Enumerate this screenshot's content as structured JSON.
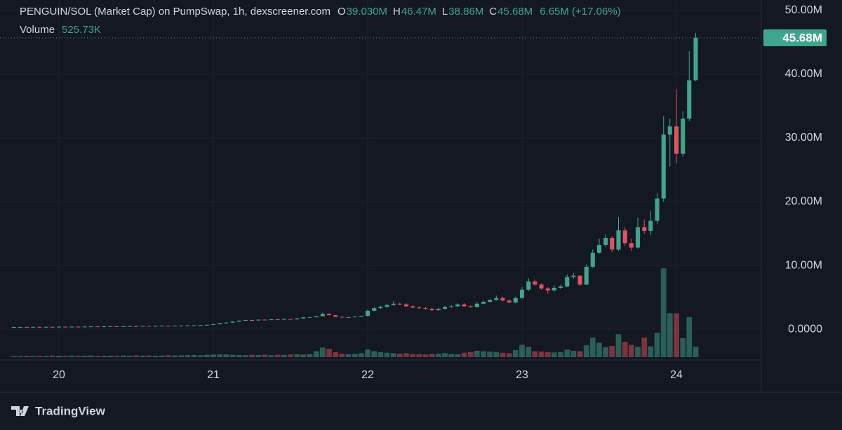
{
  "chart_data": {
    "type": "candlestick",
    "legend": {
      "title": "PENGUIN/SOL (Market Cap) on PumpSwap, 1h, dexscreener.com",
      "items": [
        {
          "key": "O",
          "value": "39.030M"
        },
        {
          "key": "H",
          "value": "46.47M"
        },
        {
          "key": "L",
          "value": "38.86M"
        },
        {
          "key": "C",
          "value": "45.68M"
        }
      ],
      "change": "6.65M (+17.06%)",
      "volume_name": "Volume",
      "volume": "525.73K"
    },
    "branding": "TradingView",
    "up_color": "#3fa58c",
    "down_color": "#e0525c",
    "background": "#141823",
    "grid": true,
    "xlim": [
      19.618,
      24.55
    ],
    "xticks": [
      20,
      21,
      22,
      23,
      24
    ],
    "ylim": [
      -4.7,
      51.6
    ],
    "yticks": [
      {
        "value": 0,
        "label": "0.0000"
      },
      {
        "value": 10,
        "label": "10.00M"
      },
      {
        "value": 20,
        "label": "20.00M"
      },
      {
        "value": 30,
        "label": "30.00M"
      },
      {
        "value": 40,
        "label": "40.00M"
      },
      {
        "value": 50,
        "label": "50.00M"
      }
    ],
    "volume_ylim": [
      0,
      17900
    ],
    "x": [
      19.708,
      19.75,
      19.792,
      19.833,
      19.875,
      19.917,
      19.958,
      20.0,
      20.042,
      20.083,
      20.125,
      20.167,
      20.208,
      20.25,
      20.292,
      20.333,
      20.375,
      20.417,
      20.458,
      20.5,
      20.542,
      20.583,
      20.625,
      20.667,
      20.708,
      20.75,
      20.792,
      20.833,
      20.875,
      20.917,
      20.958,
      21.0,
      21.042,
      21.083,
      21.125,
      21.167,
      21.208,
      21.25,
      21.292,
      21.333,
      21.375,
      21.417,
      21.458,
      21.5,
      21.542,
      21.583,
      21.625,
      21.667,
      21.708,
      21.75,
      21.792,
      21.833,
      21.875,
      21.917,
      21.958,
      22.0,
      22.042,
      22.083,
      22.125,
      22.167,
      22.208,
      22.25,
      22.292,
      22.333,
      22.375,
      22.417,
      22.458,
      22.5,
      22.542,
      22.583,
      22.625,
      22.667,
      22.708,
      22.75,
      22.792,
      22.833,
      22.875,
      22.917,
      22.958,
      23.0,
      23.042,
      23.083,
      23.125,
      23.167,
      23.208,
      23.25,
      23.292,
      23.333,
      23.375,
      23.417,
      23.458,
      23.5,
      23.542,
      23.583,
      23.625,
      23.667,
      23.708,
      23.75,
      23.792,
      23.833,
      23.875,
      23.917,
      23.958,
      24.0,
      24.042,
      24.083,
      24.125
    ],
    "open": [
      0.34,
      0.35,
      0.36,
      0.35,
      0.37,
      0.36,
      0.38,
      0.37,
      0.4,
      0.39,
      0.41,
      0.4,
      0.42,
      0.44,
      0.43,
      0.45,
      0.47,
      0.46,
      0.48,
      0.5,
      0.49,
      0.52,
      0.51,
      0.54,
      0.55,
      0.53,
      0.57,
      0.58,
      0.6,
      0.62,
      0.65,
      0.7,
      0.8,
      0.95,
      1.05,
      1.2,
      1.35,
      1.45,
      1.4,
      1.5,
      1.45,
      1.55,
      1.5,
      1.6,
      1.55,
      1.7,
      1.85,
      1.9,
      2.05,
      2.4,
      2.2,
      1.95,
      1.85,
      1.9,
      2.0,
      2.1,
      2.9,
      3.3,
      3.5,
      3.8,
      4.0,
      3.9,
      3.6,
      3.4,
      3.3,
      3.2,
      3.0,
      3.2,
      3.5,
      3.6,
      3.9,
      3.6,
      3.5,
      4.0,
      4.3,
      4.6,
      4.9,
      4.5,
      4.2,
      4.9,
      6.2,
      7.5,
      7.0,
      6.4,
      6.1,
      6.5,
      6.7,
      8.2,
      8.4,
      7.0,
      9.8,
      12.0,
      13.2,
      14.3,
      12.5,
      15.5,
      13.5,
      12.8,
      16.0,
      15.4,
      17.0,
      20.5,
      30.5,
      31.8,
      27.5,
      33.0,
      39.03
    ],
    "high": [
      0.39,
      0.4,
      0.4,
      0.41,
      0.41,
      0.42,
      0.42,
      0.44,
      0.44,
      0.45,
      0.45,
      0.46,
      0.48,
      0.48,
      0.49,
      0.51,
      0.51,
      0.52,
      0.54,
      0.54,
      0.56,
      0.56,
      0.58,
      0.59,
      0.59,
      0.61,
      0.62,
      0.64,
      0.66,
      0.69,
      0.74,
      0.84,
      0.99,
      1.09,
      1.24,
      1.39,
      1.49,
      1.49,
      1.54,
      1.54,
      1.59,
      1.59,
      1.64,
      1.64,
      1.74,
      1.89,
      1.94,
      2.09,
      2.6,
      2.5,
      2.24,
      1.99,
      1.94,
      2.04,
      2.14,
      3.1,
      3.5,
      3.7,
      4.0,
      4.4,
      4.2,
      4.1,
      3.8,
      3.6,
      3.5,
      3.4,
      3.4,
      3.7,
      3.8,
      4.1,
      4.1,
      3.8,
      4.2,
      4.5,
      4.8,
      5.3,
      5.1,
      4.7,
      5.1,
      6.6,
      8.0,
      7.8,
      7.2,
      6.6,
      6.9,
      7.0,
      8.6,
      8.8,
      8.5,
      10.2,
      12.5,
      14.2,
      14.9,
      14.6,
      17.6,
      16.0,
      14.2,
      17.5,
      17.2,
      18.6,
      21.4,
      33.4,
      33.0,
      37.6,
      34.2,
      43.6,
      46.47
    ],
    "low": [
      0.3,
      0.31,
      0.31,
      0.31,
      0.32,
      0.32,
      0.33,
      0.33,
      0.35,
      0.35,
      0.36,
      0.36,
      0.38,
      0.39,
      0.39,
      0.41,
      0.42,
      0.42,
      0.44,
      0.45,
      0.45,
      0.47,
      0.47,
      0.5,
      0.49,
      0.49,
      0.53,
      0.54,
      0.56,
      0.58,
      0.61,
      0.66,
      0.76,
      0.91,
      1.01,
      1.16,
      1.31,
      1.36,
      1.36,
      1.41,
      1.41,
      1.46,
      1.46,
      1.51,
      1.51,
      1.66,
      1.81,
      1.86,
      2.01,
      2.16,
      1.91,
      1.81,
      1.81,
      1.86,
      1.96,
      2.0,
      2.8,
      3.2,
      3.4,
      3.7,
      3.8,
      3.5,
      3.3,
      3.2,
      3.1,
      2.9,
      2.9,
      3.1,
      3.4,
      3.5,
      3.5,
      3.4,
      3.4,
      3.9,
      4.2,
      4.5,
      4.4,
      4.1,
      4.1,
      4.8,
      6.0,
      6.8,
      6.2,
      5.6,
      5.9,
      6.3,
      6.6,
      7.9,
      6.8,
      6.9,
      9.6,
      11.8,
      12.9,
      12.1,
      12.3,
      13.1,
      12.3,
      12.6,
      15.0,
      14.8,
      16.5,
      20.0,
      25.5,
      26.0,
      27.0,
      32.6,
      38.86
    ],
    "close": [
      0.35,
      0.36,
      0.35,
      0.37,
      0.36,
      0.38,
      0.37,
      0.4,
      0.39,
      0.41,
      0.4,
      0.42,
      0.44,
      0.43,
      0.45,
      0.47,
      0.46,
      0.48,
      0.5,
      0.49,
      0.52,
      0.51,
      0.54,
      0.55,
      0.53,
      0.57,
      0.58,
      0.6,
      0.62,
      0.65,
      0.7,
      0.8,
      0.95,
      1.05,
      1.2,
      1.35,
      1.45,
      1.4,
      1.5,
      1.45,
      1.55,
      1.5,
      1.6,
      1.55,
      1.7,
      1.85,
      1.9,
      2.05,
      2.4,
      2.2,
      1.95,
      1.85,
      1.9,
      2.0,
      2.1,
      2.9,
      3.3,
      3.5,
      3.8,
      4.0,
      3.9,
      3.6,
      3.4,
      3.3,
      3.2,
      3.0,
      3.2,
      3.5,
      3.6,
      3.9,
      3.6,
      3.5,
      4.0,
      4.3,
      4.6,
      4.9,
      4.5,
      4.2,
      4.9,
      6.2,
      7.5,
      7.0,
      6.4,
      6.1,
      6.5,
      6.7,
      8.2,
      8.4,
      7.0,
      9.8,
      12.0,
      13.2,
      14.3,
      12.5,
      15.5,
      13.5,
      12.8,
      16.0,
      15.4,
      17.0,
      20.5,
      30.5,
      31.8,
      27.5,
      33.0,
      39.03,
      45.68
    ],
    "volume": [
      60,
      50,
      70,
      55,
      65,
      60,
      80,
      70,
      60,
      75,
      65,
      70,
      80,
      60,
      70,
      75,
      65,
      80,
      70,
      90,
      75,
      85,
      70,
      80,
      95,
      85,
      90,
      100,
      110,
      95,
      120,
      130,
      150,
      140,
      120,
      110,
      100,
      120,
      110,
      130,
      100,
      120,
      110,
      140,
      150,
      130,
      160,
      300,
      480,
      420,
      250,
      180,
      150,
      170,
      200,
      380,
      300,
      250,
      220,
      200,
      180,
      200,
      160,
      150,
      140,
      170,
      180,
      200,
      160,
      150,
      220,
      250,
      320,
      300,
      280,
      260,
      220,
      200,
      350,
      620,
      520,
      300,
      280,
      250,
      240,
      260,
      380,
      320,
      300,
      600,
      980,
      720,
      500,
      560,
      1150,
      770,
      620,
      520,
      980,
      540,
      1220,
      4450,
      2200,
      2200,
      950,
      2000,
      525.73
    ]
  }
}
